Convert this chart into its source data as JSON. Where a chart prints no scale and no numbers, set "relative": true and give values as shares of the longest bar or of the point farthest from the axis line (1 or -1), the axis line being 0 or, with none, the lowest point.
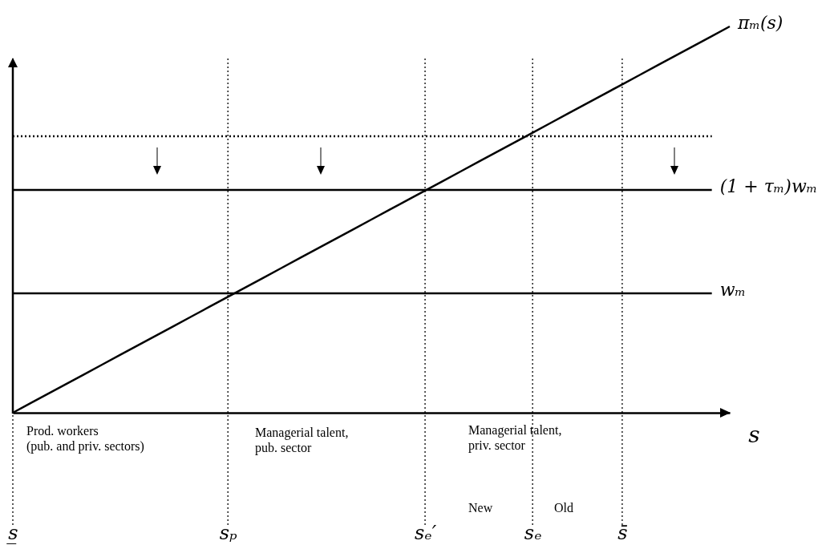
{
  "chart_data": {
    "type": "line",
    "relative": true,
    "xlabel": "s",
    "categories": [
      "s̲",
      null,
      null,
      null,
      null,
      null,
      null,
      null,
      null,
      null,
      null,
      null,
      "sₚ",
      null,
      null,
      null,
      null,
      null,
      null,
      null,
      null,
      null,
      null,
      "sₑ′",
      null,
      null,
      null,
      null,
      null,
      "sₑ",
      null,
      null,
      null,
      null,
      "s̄",
      null,
      null,
      null,
      null,
      null,
      null
    ],
    "grid": "x",
    "legend": false,
    "marker": "none",
    "line_style": "solid",
    "series": [
      {
        "name": "πₘ(s)",
        "color": "#000000",
        "values": [
          0,
          0.025,
          0.05,
          0.075,
          0.1,
          0.125,
          0.15,
          0.175,
          0.2,
          0.225,
          0.25,
          0.275,
          0.3,
          0.325,
          0.35,
          0.375,
          0.4,
          0.425,
          0.45,
          0.475,
          0.5,
          0.525,
          0.55,
          0.575,
          0.6,
          0.625,
          0.65,
          0.675,
          0.7,
          0.725,
          0.75,
          0.775,
          0.8,
          0.825,
          0.85,
          0.875,
          0.9,
          0.925,
          0.95,
          0.975,
          1
        ]
      },
      {
        "name": "(1 + τₘ)wₘ",
        "color": "#000000",
        "values": [
          0.577,
          0.577,
          0.577,
          0.577,
          0.577,
          0.577,
          0.577,
          0.577,
          0.577,
          0.577,
          0.577,
          0.577,
          0.577,
          0.577,
          0.577,
          0.577,
          0.577,
          0.577,
          0.577,
          0.577,
          0.577,
          0.577,
          0.577,
          0.577,
          0.577,
          0.577,
          0.577,
          0.577,
          0.577,
          0.577,
          0.577,
          0.577,
          0.577,
          0.577,
          0.577,
          0.577,
          0.577,
          0.577,
          0.577,
          0.577,
          null
        ]
      },
      {
        "name": "wₘ",
        "color": "#000000",
        "values": [
          0.309,
          0.309,
          0.309,
          0.309,
          0.309,
          0.309,
          0.309,
          0.309,
          0.309,
          0.309,
          0.309,
          0.309,
          0.309,
          0.309,
          0.309,
          0.309,
          0.309,
          0.309,
          0.309,
          0.309,
          0.309,
          0.309,
          0.309,
          0.309,
          0.309,
          0.309,
          0.309,
          0.309,
          0.309,
          0.309,
          0.309,
          0.309,
          0.309,
          0.309,
          0.309,
          0.309,
          0.309,
          0.309,
          0.309,
          0.309,
          null
        ]
      },
      {
        "color": "#000000",
        "line_style": "dotted",
        "values": [
          0.716,
          0.716,
          0.716,
          0.716,
          0.716,
          0.716,
          0.716,
          0.716,
          0.716,
          0.716,
          0.716,
          0.716,
          0.716,
          0.716,
          0.716,
          0.716,
          0.716,
          0.716,
          0.716,
          0.716,
          0.716,
          0.716,
          0.716,
          0.716,
          0.716,
          0.716,
          0.716,
          0.716,
          0.716,
          0.716,
          0.716,
          0.716,
          0.716,
          0.716,
          0.716,
          0.716,
          0.716,
          0.716,
          0.716,
          0.716,
          null
        ]
      }
    ],
    "annotations": [
      "Prod. workers\n(pub. and priv. sectors)",
      "Managerial talent,\npub. sector",
      "Managerial talent,\npriv. sector",
      "New",
      "Old"
    ]
  }
}
